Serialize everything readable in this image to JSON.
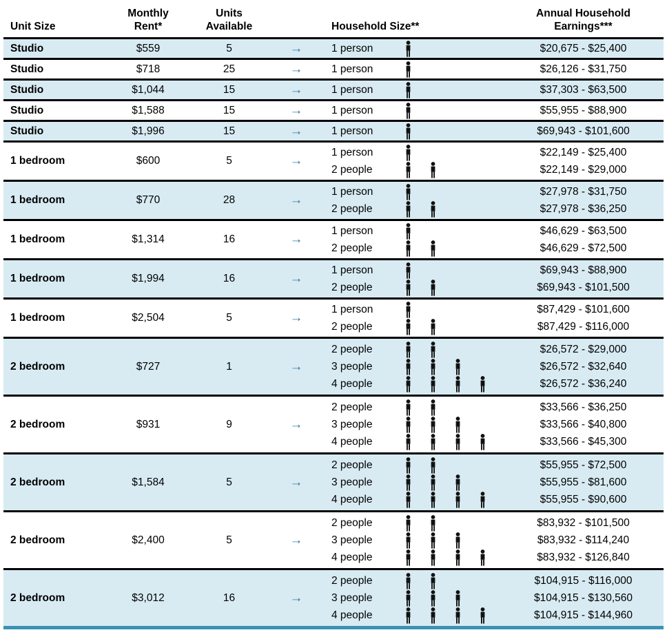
{
  "table": {
    "headers": {
      "unit_size": "Unit Size",
      "monthly_rent_line1": "Monthly",
      "monthly_rent_line2": "Rent*",
      "units_line1": "Units",
      "units_line2": "Available",
      "household_size": "Household Size**",
      "earnings_line1": "Annual Household",
      "earnings_line2": "Earnings***"
    },
    "arrow_glyph": "→",
    "person_icon": "person-silhouette",
    "colors": {
      "row_shaded": "#d8ebf3",
      "bottom_rule_teal": "#3b91b3",
      "arrow_teal": "#3279a1",
      "row_rule": "#000000",
      "icon_black": "#111111"
    },
    "rows": [
      {
        "unit_size": "Studio",
        "monthly_rent": "$559",
        "units_available": "5",
        "shaded": true,
        "household": [
          {
            "size_label": "1 person",
            "person_count": 1,
            "earnings": "$20,675 - $25,400"
          }
        ]
      },
      {
        "unit_size": "Studio",
        "monthly_rent": "$718",
        "units_available": "25",
        "shaded": false,
        "household": [
          {
            "size_label": "1 person",
            "person_count": 1,
            "earnings": "$26,126 - $31,750"
          }
        ]
      },
      {
        "unit_size": "Studio",
        "monthly_rent": "$1,044",
        "units_available": "15",
        "shaded": true,
        "household": [
          {
            "size_label": "1 person",
            "person_count": 1,
            "earnings": "$37,303 - $63,500"
          }
        ]
      },
      {
        "unit_size": "Studio",
        "monthly_rent": "$1,588",
        "units_available": "15",
        "shaded": false,
        "household": [
          {
            "size_label": "1 person",
            "person_count": 1,
            "earnings": "$55,955 - $88,900"
          }
        ]
      },
      {
        "unit_size": "Studio",
        "monthly_rent": "$1,996",
        "units_available": "15",
        "shaded": true,
        "household": [
          {
            "size_label": "1 person",
            "person_count": 1,
            "earnings": "$69,943 - $101,600"
          }
        ]
      },
      {
        "unit_size": "1 bedroom",
        "monthly_rent": "$600",
        "units_available": "5",
        "shaded": false,
        "household": [
          {
            "size_label": "1 person",
            "person_count": 1,
            "earnings": "$22,149 - $25,400"
          },
          {
            "size_label": "2 people",
            "person_count": 2,
            "earnings": "$22,149 - $29,000"
          }
        ]
      },
      {
        "unit_size": "1 bedroom",
        "monthly_rent": "$770",
        "units_available": "28",
        "shaded": true,
        "household": [
          {
            "size_label": "1 person",
            "person_count": 1,
            "earnings": "$27,978 - $31,750"
          },
          {
            "size_label": "2 people",
            "person_count": 2,
            "earnings": "$27,978 - $36,250"
          }
        ]
      },
      {
        "unit_size": "1 bedroom",
        "monthly_rent": "$1,314",
        "units_available": "16",
        "shaded": false,
        "household": [
          {
            "size_label": "1 person",
            "person_count": 1,
            "earnings": "$46,629 - $63,500"
          },
          {
            "size_label": "2 people",
            "person_count": 2,
            "earnings": "$46,629 - $72,500"
          }
        ]
      },
      {
        "unit_size": "1 bedroom",
        "monthly_rent": "$1,994",
        "units_available": "16",
        "shaded": true,
        "household": [
          {
            "size_label": "1 person",
            "person_count": 1,
            "earnings": "$69,943 - $88,900"
          },
          {
            "size_label": "2 people",
            "person_count": 2,
            "earnings": "$69,943 - $101,500"
          }
        ]
      },
      {
        "unit_size": "1 bedroom",
        "monthly_rent": "$2,504",
        "units_available": "5",
        "shaded": false,
        "household": [
          {
            "size_label": "1 person",
            "person_count": 1,
            "earnings": "$87,429 - $101,600"
          },
          {
            "size_label": "2 people",
            "person_count": 2,
            "earnings": "$87,429 - $116,000"
          }
        ]
      },
      {
        "unit_size": "2 bedroom",
        "monthly_rent": "$727",
        "units_available": "1",
        "shaded": true,
        "household": [
          {
            "size_label": "2 people",
            "person_count": 2,
            "earnings": "$26,572 - $29,000"
          },
          {
            "size_label": "3 people",
            "person_count": 3,
            "earnings": "$26,572 - $32,640"
          },
          {
            "size_label": "4 people",
            "person_count": 4,
            "earnings": "$26,572 - $36,240"
          }
        ]
      },
      {
        "unit_size": "2 bedroom",
        "monthly_rent": "$931",
        "units_available": "9",
        "shaded": false,
        "household": [
          {
            "size_label": "2 people",
            "person_count": 2,
            "earnings": "$33,566 - $36,250"
          },
          {
            "size_label": "3 people",
            "person_count": 3,
            "earnings": "$33,566 - $40,800"
          },
          {
            "size_label": "4 people",
            "person_count": 4,
            "earnings": "$33,566 - $45,300"
          }
        ]
      },
      {
        "unit_size": "2 bedroom",
        "monthly_rent": "$1,584",
        "units_available": "5",
        "shaded": true,
        "household": [
          {
            "size_label": "2 people",
            "person_count": 2,
            "earnings": "$55,955 - $72,500"
          },
          {
            "size_label": "3 people",
            "person_count": 3,
            "earnings": "$55,955 - $81,600"
          },
          {
            "size_label": "4 people",
            "person_count": 4,
            "earnings": "$55,955 - $90,600"
          }
        ]
      },
      {
        "unit_size": "2 bedroom",
        "monthly_rent": "$2,400",
        "units_available": "5",
        "shaded": false,
        "household": [
          {
            "size_label": "2 people",
            "person_count": 2,
            "earnings": "$83,932 - $101,500"
          },
          {
            "size_label": "3 people",
            "person_count": 3,
            "earnings": "$83,932 - $114,240"
          },
          {
            "size_label": "4 people",
            "person_count": 4,
            "earnings": "$83,932 - $126,840"
          }
        ]
      },
      {
        "unit_size": "2 bedroom",
        "monthly_rent": "$3,012",
        "units_available": "16",
        "shaded": true,
        "household": [
          {
            "size_label": "2 people",
            "person_count": 2,
            "earnings": "$104,915 - $116,000"
          },
          {
            "size_label": "3 people",
            "person_count": 3,
            "earnings": "$104,915 - $130,560"
          },
          {
            "size_label": "4 people",
            "person_count": 4,
            "earnings": "$104,915 - $144,960"
          }
        ]
      }
    ]
  }
}
